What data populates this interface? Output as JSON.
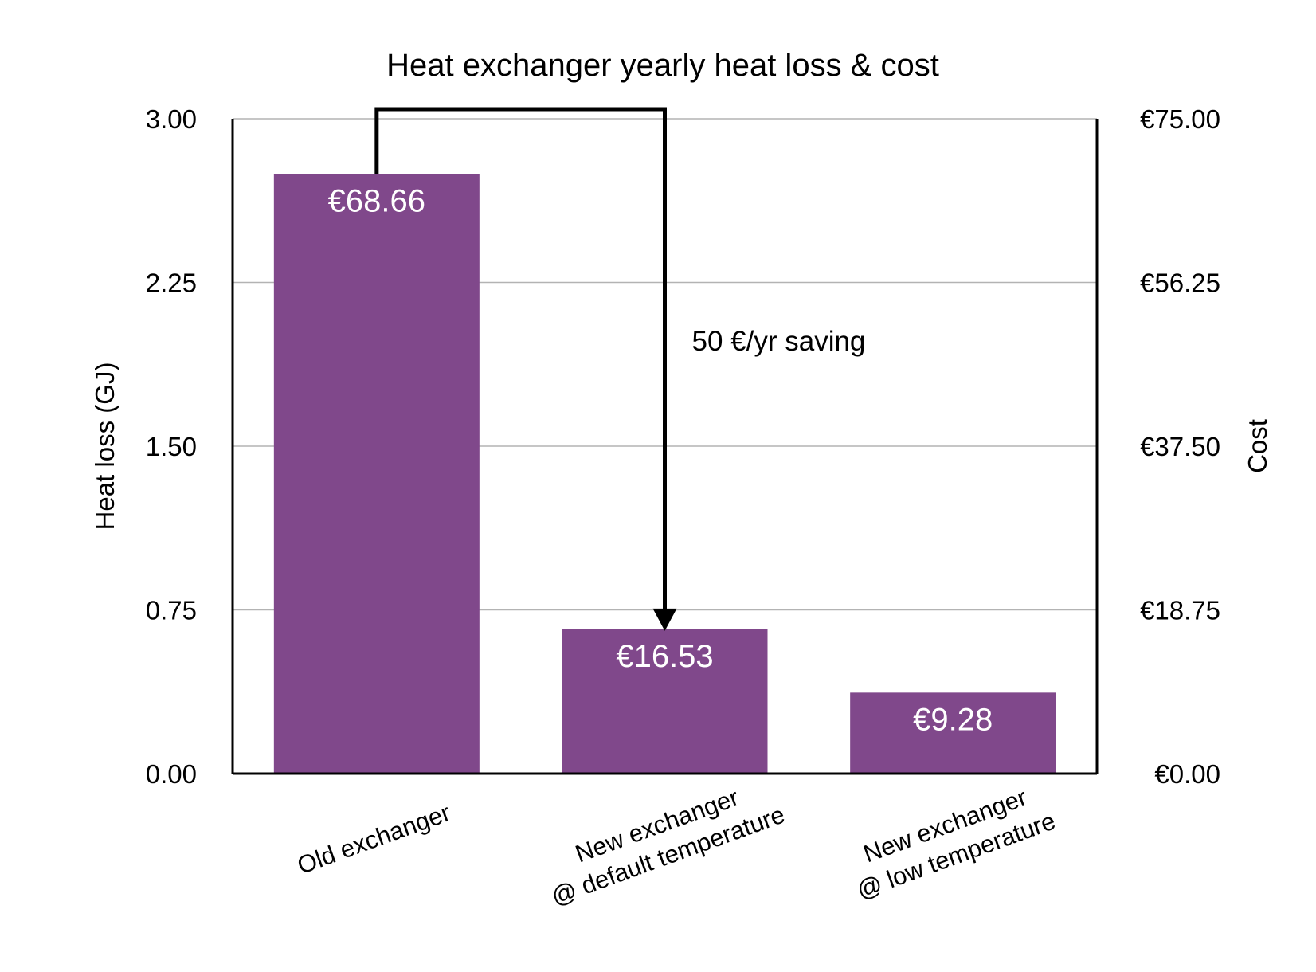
{
  "chart_data": {
    "type": "bar",
    "title": "Heat exchanger yearly heat loss & cost",
    "ylabel": "Heat loss (GJ)",
    "y2label": "Cost",
    "ylim": [
      0,
      3
    ],
    "y2lim": [
      0,
      75
    ],
    "yticks": [
      "0.00",
      "0.75",
      "1.50",
      "2.25",
      "3.00"
    ],
    "y2ticks": [
      "€0.00",
      "€18.75",
      "€37.50",
      "€56.25",
      "€75.00"
    ],
    "categories": [
      [
        "Old exchanger"
      ],
      [
        "New exchanger",
        "@ default temperature"
      ],
      [
        "New exchanger",
        "@ low temperature"
      ]
    ],
    "values": [
      2.746,
      0.661,
      0.371
    ],
    "cost_labels": [
      "€68.66",
      "€16.53",
      "€9.28"
    ],
    "bar_color": "#80488b",
    "grid": true,
    "annotation": {
      "text": "50 €/yr saving",
      "from_index": 0,
      "to_index": 1
    }
  }
}
